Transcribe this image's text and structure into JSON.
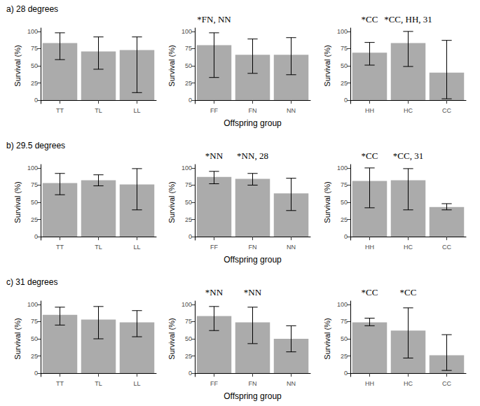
{
  "chart_data": [
    {
      "type": "bar",
      "title": "a) 28 degrees",
      "y_label": "Survival (%)",
      "color": "#ababab",
      "grid": false,
      "categories": [
        "TT",
        "TL",
        "LL"
      ],
      "values": [
        83,
        71,
        73
      ],
      "error_low": [
        59,
        45,
        11
      ],
      "error_high": [
        98,
        92,
        92
      ],
      "annotations": [
        null,
        null,
        null
      ],
      "ylim": [
        -5,
        105
      ],
      "yticks": [
        0,
        25,
        50,
        75,
        100
      ]
    },
    {
      "type": "bar",
      "x_label": "Offspring group",
      "color": "#ababab",
      "grid": false,
      "categories": [
        "FF",
        "FN",
        "NN"
      ],
      "values": [
        80,
        66,
        66
      ],
      "error_low": [
        33,
        39,
        37
      ],
      "error_high": [
        98,
        89,
        91
      ],
      "annotations": [
        "*FN, NN",
        null,
        null
      ],
      "ylim": [
        -5,
        105
      ],
      "yticks": [
        0,
        25,
        50,
        75,
        100
      ]
    },
    {
      "type": "bar",
      "color": "#ababab",
      "grid": false,
      "categories": [
        "HH",
        "HC",
        "CC"
      ],
      "values": [
        69,
        83,
        40
      ],
      "error_low": [
        51,
        49,
        2
      ],
      "error_high": [
        84,
        100,
        87
      ],
      "annotations": [
        "*CC",
        "*CC, HH, 31",
        null
      ],
      "ylim": [
        -5,
        105
      ],
      "yticks": [
        0,
        25,
        50,
        75,
        100
      ]
    },
    {
      "type": "bar",
      "title": "b) 29.5 degrees",
      "color": "#ababab",
      "grid": false,
      "categories": [
        "TT",
        "TL",
        "LL"
      ],
      "values": [
        78,
        82,
        76
      ],
      "error_low": [
        61,
        74,
        39
      ],
      "error_high": [
        92,
        90,
        99
      ],
      "annotations": [
        null,
        null,
        null
      ],
      "ylim": [
        -5,
        105
      ],
      "yticks": [
        0,
        25,
        50,
        75,
        100
      ]
    },
    {
      "type": "bar",
      "x_label": "Offspring group",
      "color": "#ababab",
      "grid": false,
      "categories": [
        "FF",
        "FN",
        "NN"
      ],
      "values": [
        87,
        84,
        63
      ],
      "error_low": [
        77,
        75,
        38
      ],
      "error_high": [
        95,
        92,
        85
      ],
      "annotations": [
        "*NN",
        "*NN, 28",
        null
      ],
      "ylim": [
        -5,
        105
      ],
      "yticks": [
        0,
        25,
        50,
        75,
        100
      ]
    },
    {
      "type": "bar",
      "color": "#ababab",
      "grid": false,
      "categories": [
        "HH",
        "HC",
        "CC"
      ],
      "values": [
        81,
        82,
        43
      ],
      "error_low": [
        42,
        39,
        39
      ],
      "error_high": [
        100,
        99,
        48
      ],
      "annotations": [
        "*CC",
        "*CC, 31",
        null
      ],
      "ylim": [
        -5,
        105
      ],
      "yticks": [
        0,
        25,
        50,
        75,
        100
      ]
    },
    {
      "type": "bar",
      "title": "c) 31 degrees",
      "color": "#ababab",
      "grid": false,
      "categories": [
        "TT",
        "TL",
        "LL"
      ],
      "values": [
        85,
        78,
        74
      ],
      "error_low": [
        70,
        50,
        53
      ],
      "error_high": [
        96,
        97,
        91
      ],
      "annotations": [
        null,
        null,
        null
      ],
      "ylim": [
        -5,
        105
      ],
      "yticks": [
        0,
        25,
        50,
        75,
        100
      ]
    },
    {
      "type": "bar",
      "x_label": "Offspring group",
      "color": "#ababab",
      "grid": false,
      "categories": [
        "FF",
        "FN",
        "NN"
      ],
      "values": [
        83,
        74,
        50
      ],
      "error_low": [
        62,
        43,
        31
      ],
      "error_high": [
        97,
        96,
        69
      ],
      "annotations": [
        "*NN",
        "*NN",
        null
      ],
      "ylim": [
        -5,
        105
      ],
      "yticks": [
        0,
        25,
        50,
        75,
        100
      ]
    },
    {
      "type": "bar",
      "color": "#ababab",
      "grid": false,
      "categories": [
        "HH",
        "HC",
        "CC"
      ],
      "values": [
        74,
        62,
        26
      ],
      "error_low": [
        69,
        22,
        4
      ],
      "error_high": [
        80,
        95,
        56
      ],
      "annotations": [
        "*CC",
        "*CC",
        null
      ],
      "ylim": [
        -5,
        105
      ],
      "yticks": [
        0,
        25,
        50,
        75,
        100
      ]
    }
  ]
}
